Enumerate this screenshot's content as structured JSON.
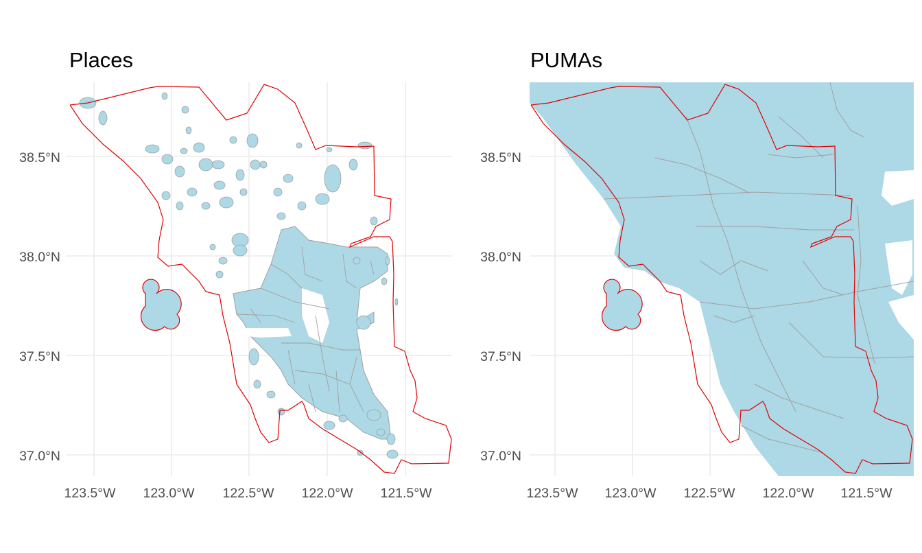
{
  "panels": [
    {
      "title": "Places",
      "x_ticks": [
        "123.5°W",
        "123.0°W",
        "122.5°W",
        "122.0°W",
        "121.5°W"
      ],
      "y_ticks": [
        "38.5°N",
        "38.0°N",
        "37.5°N",
        "37.0°N"
      ]
    },
    {
      "title": "PUMAs",
      "x_ticks": [
        "123.5°W",
        "123.0°W",
        "122.5°W",
        "122.0°W",
        "121.5°W"
      ],
      "y_ticks": [
        "38.5°N",
        "38.0°N",
        "37.5°N",
        "37.0°N"
      ]
    }
  ],
  "colors": {
    "fill": "#add8e6",
    "feature_border": "#a0a0a0",
    "region_outline": "#e00000",
    "grid": "#ebebeb",
    "tick_text": "#4d4d4d"
  },
  "chart_data": [
    {
      "type": "map",
      "title": "Places",
      "layer": "Census places (filled polygons) within the Bay Area boundary",
      "x_ticks_deg": [
        -123.5,
        -123.0,
        -122.5,
        -122.0,
        -121.5
      ],
      "y_ticks_deg": [
        38.5,
        38.0,
        37.5,
        37.0
      ],
      "xlim": [
        -123.65,
        -121.2
      ],
      "ylim": [
        36.88,
        38.87
      ],
      "grid": true
    },
    {
      "type": "map",
      "title": "PUMAs",
      "layer": "PUMA polygons overlapping the Bay Area boundary",
      "x_ticks_deg": [
        -123.5,
        -123.0,
        -122.5,
        -122.0,
        -121.5
      ],
      "y_ticks_deg": [
        38.5,
        38.0,
        37.5,
        37.0
      ],
      "xlim": [
        -123.65,
        -121.2
      ],
      "ylim": [
        36.88,
        38.87
      ],
      "grid": true
    }
  ]
}
